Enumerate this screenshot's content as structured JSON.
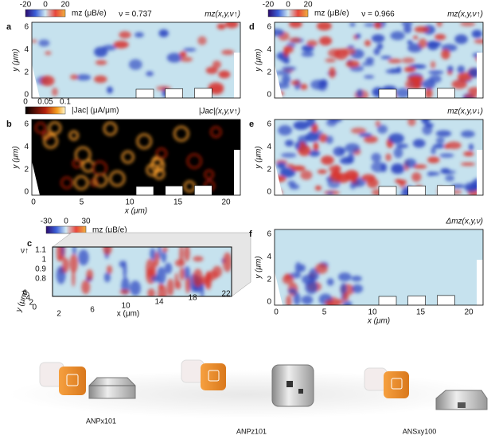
{
  "panels": [
    {
      "label": "a",
      "colorbar": {
        "ticks": [
          "-20",
          "0",
          "20"
        ],
        "label": "mz (μB/e)"
      },
      "nu": "ν = 0.737",
      "map_title": "mz(x,y,ν↑)",
      "y_label": "y (μm)",
      "y_ticks": [
        "0",
        "2",
        "4",
        "6"
      ]
    },
    {
      "label": "b",
      "colorbar": {
        "ticks": [
          "0",
          "0.05",
          "0.1"
        ],
        "label": "|Jac| (μA/μm)"
      },
      "map_title": "|Jac|(x,y,ν↑)",
      "y_label": "y (μm)",
      "y_ticks": [
        "0",
        "2",
        "4",
        "6"
      ],
      "x_label": "x (μm)",
      "x_ticks": [
        "0",
        "5",
        "10",
        "15",
        "20"
      ]
    },
    {
      "label": "c",
      "colorbar": {
        "ticks": [
          "-30",
          "0",
          "30"
        ],
        "label": "mz (μB/e)"
      },
      "nu_label": "ν↑",
      "nu_ticks": [
        "0.8",
        "0.9",
        "1",
        "1.1"
      ],
      "y_label": "y (μm)",
      "y_ticks": [
        "0",
        "2",
        "4",
        "6"
      ],
      "x_label": "x (μm)",
      "x_ticks": [
        "2",
        "6",
        "10",
        "14",
        "18",
        "22"
      ]
    },
    {
      "label": "d",
      "colorbar": {
        "ticks": [
          "-20",
          "0",
          "20"
        ],
        "label": "mz (μB/e)"
      },
      "nu": "ν = 0.966",
      "map_title": "mz(x,y,ν↑)",
      "y_label": "y (μm)",
      "y_ticks": [
        "0",
        "2",
        "4",
        "6"
      ]
    },
    {
      "label": "e",
      "map_title": "mz(x,y,ν↓)",
      "y_label": "y (μm)",
      "y_ticks": [
        "0",
        "2",
        "4",
        "6"
      ]
    },
    {
      "label": "f",
      "map_title": "Δmz(x,y,ν)",
      "y_label": "y (μm)",
      "y_ticks": [
        "0",
        "2",
        "4",
        "6"
      ],
      "x_label": "x (μm)",
      "x_ticks": [
        "0",
        "5",
        "10",
        "15",
        "20"
      ]
    }
  ],
  "products": [
    {
      "name": "ANPx101"
    },
    {
      "name": "ANPz101"
    },
    {
      "name": "ANSxy100"
    }
  ]
}
